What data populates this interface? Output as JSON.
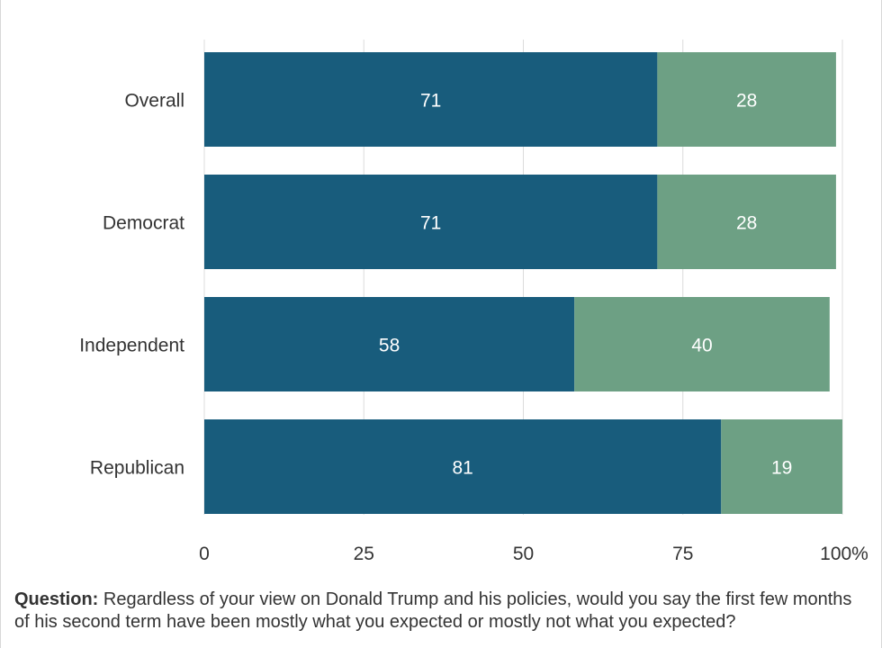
{
  "chart_data": {
    "type": "bar",
    "orientation": "horizontal",
    "stacked": true,
    "categories": [
      "Overall",
      "Democrat",
      "Independent",
      "Republican"
    ],
    "series": [
      {
        "values": [
          71,
          71,
          58,
          81
        ],
        "color": "#185c7c"
      },
      {
        "values": [
          28,
          28,
          40,
          19
        ],
        "color": "#6da084"
      }
    ],
    "xlim": [
      0,
      100
    ],
    "xticks": [
      "0",
      "25",
      "50",
      "75",
      "100"
    ],
    "x_unit": "%",
    "grid": true,
    "title": "",
    "xlabel": "",
    "ylabel": ""
  },
  "note": {
    "lead": "Question:",
    "text": " Regardless of your view on Donald Trump and his policies, would you say the first few months of his second term have been mostly what you expected or mostly not what you expected?"
  }
}
